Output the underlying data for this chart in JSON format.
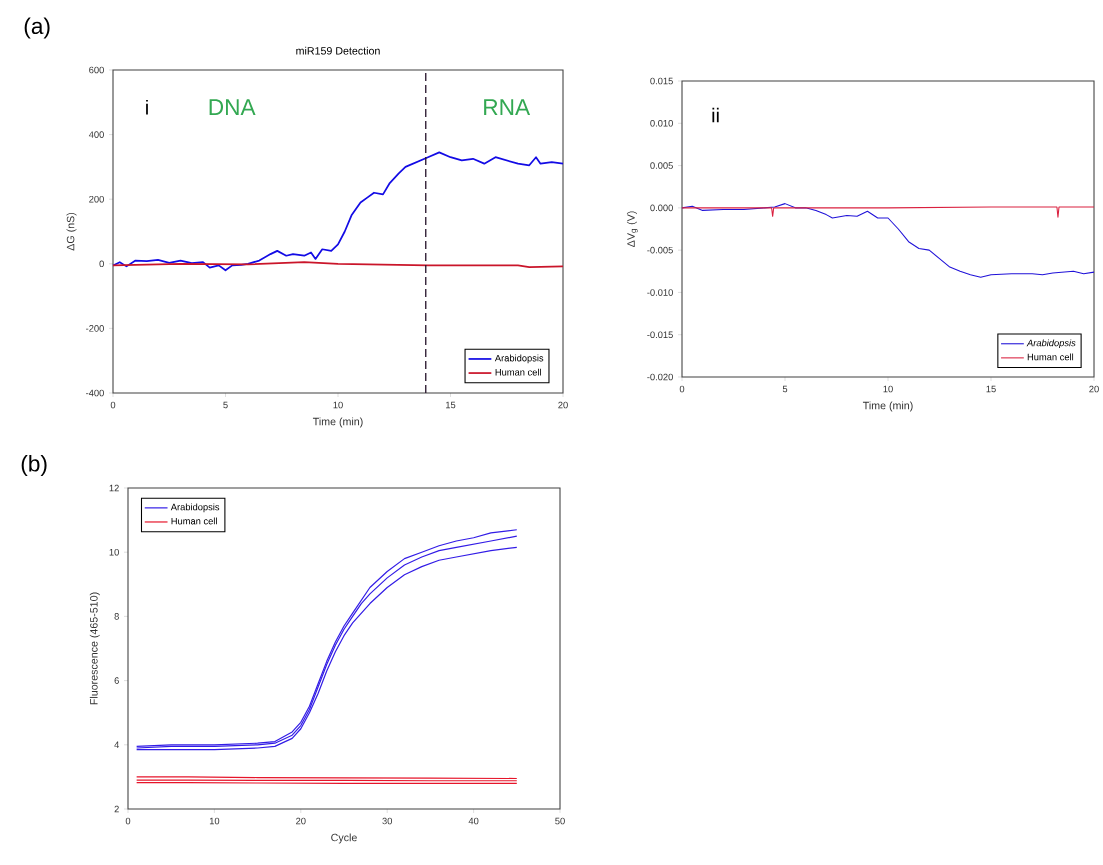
{
  "chart_data": [
    {
      "type": "line",
      "title": "miR159 Detection",
      "xlabel": "Time (min)",
      "ylabel": "ΔG (nS)",
      "xlim": [
        0,
        20
      ],
      "ylim": [
        -400,
        600
      ],
      "xticks": [
        0,
        5,
        10,
        15,
        20
      ],
      "yticks": [
        -400,
        -200,
        0,
        200,
        400,
        600
      ],
      "legend": "bottom right",
      "grid": false,
      "ref_lines": [
        {
          "axis": "x",
          "value": 13.9,
          "line_style": "dashed",
          "color": "#222222"
        }
      ],
      "annotations": [
        "(a)",
        "i",
        "DNA",
        "RNA"
      ],
      "series": [
        {
          "name": "Arabidopsis",
          "color": "#1010e0",
          "x": [
            0,
            0.3,
            0.6,
            1,
            1.5,
            2,
            2.5,
            3,
            3.5,
            4,
            4.3,
            4.7,
            5,
            5.3,
            5.7,
            6,
            6.5,
            7,
            7.3,
            7.7,
            8,
            8.5,
            8.8,
            9,
            9.3,
            9.7,
            10,
            10.3,
            10.6,
            11,
            11.3,
            11.6,
            12,
            12.3,
            12.7,
            13,
            13.5,
            14,
            14.5,
            15,
            15.5,
            16,
            16.5,
            17,
            17.5,
            18,
            18.5,
            18.8,
            19,
            19.5,
            20
          ],
          "values": [
            -5,
            5,
            -8,
            10,
            8,
            12,
            3,
            10,
            2,
            5,
            -12,
            -5,
            -20,
            -5,
            -3,
            0,
            10,
            30,
            40,
            25,
            30,
            25,
            35,
            15,
            45,
            40,
            60,
            100,
            150,
            190,
            205,
            220,
            215,
            250,
            280,
            300,
            315,
            330,
            345,
            330,
            320,
            325,
            310,
            330,
            320,
            310,
            305,
            330,
            310,
            315,
            310
          ]
        },
        {
          "name": "Human cell",
          "color": "#c42020",
          "x": [
            0,
            3,
            6,
            8.5,
            10,
            14,
            18,
            18.5,
            20
          ],
          "values": [
            -5,
            0,
            -2,
            5,
            0,
            -5,
            -5,
            -10,
            -8
          ]
        }
      ]
    },
    {
      "type": "line",
      "xlabel": "Time (min)",
      "ylabel": "ΔV$_{g}$ (V)",
      "xlim": [
        0,
        20
      ],
      "ylim": [
        -0.02,
        0.015
      ],
      "xticks": [
        0,
        5,
        10,
        15,
        20
      ],
      "yticks": [
        {
          "value": -0.02,
          "label": "-0.020"
        },
        {
          "value": -0.015,
          "label": "-0.015"
        },
        {
          "value": -0.01,
          "label": "-0.010"
        },
        {
          "value": -0.005,
          "label": "-0.005"
        },
        {
          "value": 0,
          "label": "0.000"
        },
        {
          "value": 0.005,
          "label": "0.005"
        },
        {
          "value": 0.01,
          "label": "0.010"
        },
        {
          "value": 0.015,
          "label": "0.015"
        }
      ],
      "legend": "bottom right",
      "grid": false,
      "annotations": [
        "ii"
      ],
      "series": [
        {
          "name": "*Arabidopsis*",
          "color": "#1a1ad0",
          "x": [
            0,
            0.5,
            1,
            2,
            3,
            4,
            4.5,
            5,
            5.5,
            6,
            6.5,
            7,
            7.3,
            8,
            8.5,
            9,
            9.5,
            10,
            10.5,
            11,
            11.5,
            12,
            12.5,
            13,
            13.5,
            14,
            14.5,
            15,
            16,
            17,
            17.5,
            18,
            19,
            19.5,
            20
          ],
          "values": [
            0,
            0.0002,
            -0.0003,
            -0.0002,
            -0.0002,
            0,
            0.0001,
            0.0005,
            0,
            0,
            -0.0003,
            -0.0008,
            -0.0012,
            -0.0009,
            -0.001,
            -0.0004,
            -0.0012,
            -0.0012,
            -0.0025,
            -0.004,
            -0.0048,
            -0.005,
            -0.006,
            -0.007,
            -0.0075,
            -0.0079,
            -0.0082,
            -0.0079,
            -0.0078,
            -0.0078,
            -0.0079,
            -0.0077,
            -0.0075,
            -0.0078,
            -0.0076
          ]
        },
        {
          "name": "Human cell",
          "color": "#d03030",
          "x": [
            0,
            4.35,
            4.4,
            4.45,
            8,
            10,
            15,
            18.2,
            18.25,
            18.3,
            20
          ],
          "values": [
            0,
            0,
            -0.001,
            0,
            0,
            0,
            0.0001,
            0.0001,
            -0.0011,
            0.0001,
            0.0001
          ]
        }
      ]
    },
    {
      "type": "line",
      "xlabel": "Cycle",
      "ylabel": "Fluorescence (465-510)",
      "xlim": [
        0,
        50
      ],
      "ylim": [
        2,
        12
      ],
      "xticks": [
        0,
        10,
        20,
        30,
        40,
        50
      ],
      "yticks": [
        2,
        4,
        6,
        8,
        10,
        12
      ],
      "legend": "top left",
      "grid": false,
      "annotations": [
        "(b)"
      ],
      "series": [
        {
          "name": "Arabidopsis",
          "color": "#2a2ad8",
          "x": [
            1,
            5,
            10,
            15,
            17,
            19,
            20,
            21,
            22,
            23,
            24,
            25,
            26,
            27,
            28,
            30,
            32,
            34,
            36,
            38,
            40,
            42,
            45
          ],
          "values": [
            3.95,
            4.0,
            4.0,
            4.05,
            4.1,
            4.4,
            4.7,
            5.2,
            5.9,
            6.6,
            7.2,
            7.7,
            8.1,
            8.5,
            8.9,
            9.4,
            9.8,
            10.0,
            10.2,
            10.35,
            10.45,
            10.6,
            10.7
          ]
        },
        {
          "color": "#2a2ad8",
          "x": [
            1,
            5,
            10,
            15,
            17,
            19,
            20,
            21,
            22,
            23,
            24,
            25,
            26,
            27,
            28,
            30,
            32,
            34,
            36,
            38,
            40,
            42,
            45
          ],
          "values": [
            3.9,
            3.95,
            3.95,
            4.0,
            4.05,
            4.3,
            4.6,
            5.1,
            5.8,
            6.5,
            7.1,
            7.6,
            8.0,
            8.4,
            8.7,
            9.2,
            9.6,
            9.85,
            10.05,
            10.15,
            10.25,
            10.35,
            10.5
          ]
        },
        {
          "color": "#2a2ad8",
          "x": [
            1,
            5,
            10,
            15,
            17,
            19,
            20,
            21,
            22,
            23,
            24,
            25,
            26,
            27,
            28,
            30,
            32,
            34,
            36,
            38,
            40,
            42,
            45
          ],
          "values": [
            3.85,
            3.85,
            3.85,
            3.9,
            3.95,
            4.2,
            4.5,
            5.0,
            5.6,
            6.3,
            6.9,
            7.4,
            7.8,
            8.1,
            8.4,
            8.9,
            9.3,
            9.55,
            9.75,
            9.85,
            9.95,
            10.05,
            10.15
          ]
        },
        {
          "name": "Human cell",
          "color": "#e02020",
          "x": [
            1,
            7,
            15,
            25,
            35,
            45
          ],
          "values": [
            3.0,
            3.0,
            2.98,
            2.97,
            2.96,
            2.95
          ]
        },
        {
          "color": "#e02020",
          "x": [
            1,
            7,
            15,
            25,
            35,
            45
          ],
          "values": [
            2.9,
            2.9,
            2.89,
            2.89,
            2.88,
            2.88
          ]
        },
        {
          "color": "#e02020",
          "x": [
            1,
            7,
            15,
            25,
            35,
            45
          ],
          "values": [
            2.82,
            2.82,
            2.81,
            2.8,
            2.8,
            2.8
          ]
        }
      ]
    }
  ]
}
